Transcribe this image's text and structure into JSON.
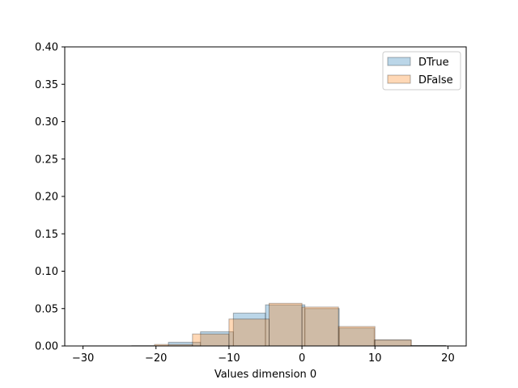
{
  "chart_data": {
    "type": "histogram",
    "title": "",
    "xlabel": "Values dimension 0",
    "ylabel": "",
    "xlim": [
      -32.5,
      22.5
    ],
    "ylim": [
      0,
      0.4
    ],
    "xticks": [
      -30,
      -20,
      -10,
      0,
      10,
      20
    ],
    "yticks": [
      0.0,
      0.05,
      0.1,
      0.15,
      0.2,
      0.25,
      0.3,
      0.35,
      0.4
    ],
    "xtick_labels": [
      "−30",
      "−20",
      "−10",
      "0",
      "10",
      "20"
    ],
    "ytick_labels": [
      "0.00",
      "0.05",
      "0.10",
      "0.15",
      "0.20",
      "0.25",
      "0.30",
      "0.35",
      "0.40"
    ],
    "grid": false,
    "legend_position": "top-right",
    "series": [
      {
        "name": "DTrue",
        "color": "#1f77b4",
        "bins": [
          {
            "x0": -23.3,
            "x1": -18.3,
            "value": 0.0003
          },
          {
            "x0": -18.3,
            "x1": -13.9,
            "value": 0.005
          },
          {
            "x0": -13.9,
            "x1": -9.4,
            "value": 0.019
          },
          {
            "x0": -9.4,
            "x1": -5.0,
            "value": 0.044
          },
          {
            "x0": -5.0,
            "x1": 0.4,
            "value": 0.055
          },
          {
            "x0": 0.4,
            "x1": 5.1,
            "value": 0.05
          },
          {
            "x0": 5.1,
            "x1": 9.9,
            "value": 0.024
          },
          {
            "x0": 9.9,
            "x1": 14.9,
            "value": 0.008
          },
          {
            "x0": 14.9,
            "x1": 19.7,
            "value": 0.0006
          }
        ]
      },
      {
        "name": "DFalse",
        "color": "#ff7f0e",
        "bins": [
          {
            "x0": -30.0,
            "x1": -20.2,
            "value": 0.0002
          },
          {
            "x0": -20.2,
            "x1": -15.0,
            "value": 0.002
          },
          {
            "x0": -15.0,
            "x1": -10.0,
            "value": 0.016
          },
          {
            "x0": -10.0,
            "x1": -4.5,
            "value": 0.036
          },
          {
            "x0": -4.5,
            "x1": 0.0,
            "value": 0.057
          },
          {
            "x0": 0.0,
            "x1": 5.0,
            "value": 0.052
          },
          {
            "x0": 5.0,
            "x1": 10.0,
            "value": 0.026
          },
          {
            "x0": 10.0,
            "x1": 15.0,
            "value": 0.008
          },
          {
            "x0": 15.0,
            "x1": 19.7,
            "value": 0.0004
          }
        ]
      }
    ]
  }
}
